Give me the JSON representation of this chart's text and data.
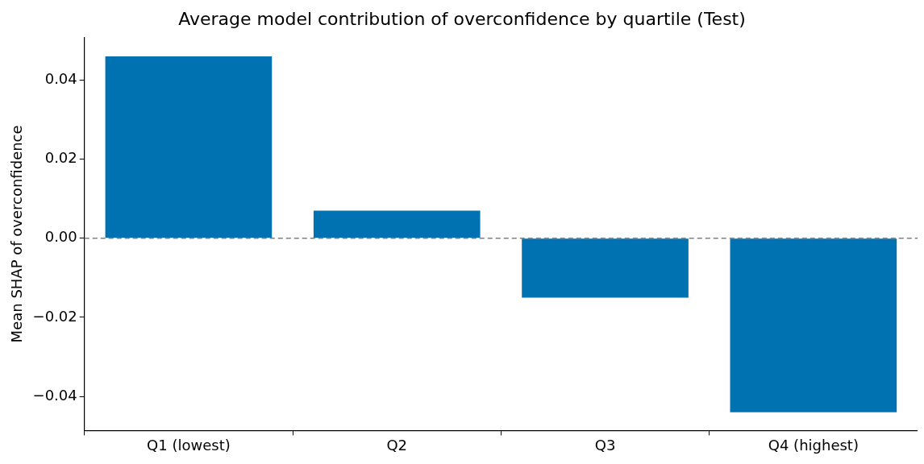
{
  "chart_data": {
    "type": "bar",
    "title": "Average model contribution of overconfidence by quartile (Test)",
    "ylabel": "Mean SHAP of overconfidence",
    "categories": [
      "Q1 (lowest)",
      "Q2",
      "Q3",
      "Q4 (highest)"
    ],
    "values": [
      0.046,
      0.007,
      -0.015,
      -0.044
    ],
    "color": "#0072b2",
    "ylim": [
      -0.0486,
      0.0508
    ],
    "yticks": [
      {
        "value": -0.04,
        "label": "−0.04"
      },
      {
        "value": -0.02,
        "label": "−0.02"
      },
      {
        "value": 0,
        "label": "0.00"
      },
      {
        "value": 0.02,
        "label": "0.02"
      },
      {
        "value": 0.04,
        "label": "0.04"
      }
    ],
    "ref_lines": [
      {
        "axis": "y",
        "value": 0,
        "color": "#808080",
        "line_style": "dashed"
      }
    ],
    "grid": false,
    "legend": false
  }
}
